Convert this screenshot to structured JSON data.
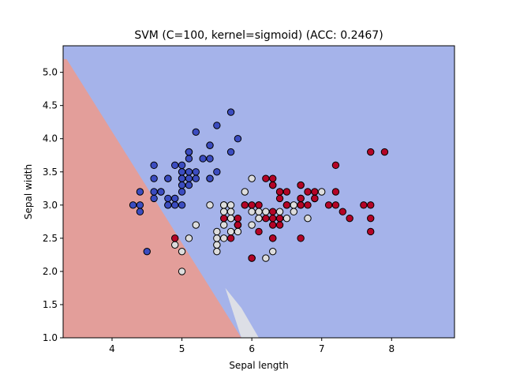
{
  "chart_data": {
    "type": "scatter",
    "title": "SVM (C=100, kernel=sigmoid) (ACC: 0.2467)",
    "xlabel": "Sepal length",
    "ylabel": "Sepal width",
    "xlim": [
      3.3,
      8.9
    ],
    "ylim": [
      1.0,
      5.4
    ],
    "xticks": [
      "4",
      "5",
      "6",
      "7",
      "8"
    ],
    "yticks": [
      "1.0",
      "1.5",
      "2.0",
      "2.5",
      "3.0",
      "3.5",
      "4.0",
      "4.5",
      "5.0"
    ],
    "grid": false,
    "legend": "none",
    "decision_regions": [
      {
        "class": "0",
        "color": "#a5b3ea",
        "boundary": "upper-right of line"
      },
      {
        "class": "1",
        "color": "#dddfe6",
        "boundary": "thin wedge between regions near x 5.6-5.9, y 1.0-1.7"
      },
      {
        "class": "2",
        "color": "#e39e9a",
        "boundary": "lower-left of line from (3.3, 5.2) to (5.85, 1.0)"
      }
    ],
    "series": [
      {
        "class": "0",
        "color": "#3b4cc0",
        "points": [
          [
            5.1,
            3.5
          ],
          [
            4.9,
            3.0
          ],
          [
            4.7,
            3.2
          ],
          [
            4.6,
            3.1
          ],
          [
            5.0,
            3.6
          ],
          [
            5.4,
            3.9
          ],
          [
            4.6,
            3.4
          ],
          [
            5.0,
            3.4
          ],
          [
            4.4,
            2.9
          ],
          [
            4.9,
            3.1
          ],
          [
            5.4,
            3.7
          ],
          [
            4.8,
            3.4
          ],
          [
            4.8,
            3.0
          ],
          [
            4.3,
            3.0
          ],
          [
            5.8,
            4.0
          ],
          [
            5.7,
            4.4
          ],
          [
            5.4,
            3.9
          ],
          [
            5.1,
            3.5
          ],
          [
            5.7,
            3.8
          ],
          [
            5.1,
            3.8
          ],
          [
            5.4,
            3.4
          ],
          [
            5.1,
            3.7
          ],
          [
            4.6,
            3.6
          ],
          [
            5.1,
            3.3
          ],
          [
            4.8,
            3.4
          ],
          [
            5.0,
            3.0
          ],
          [
            5.0,
            3.4
          ],
          [
            5.2,
            3.5
          ],
          [
            5.2,
            3.4
          ],
          [
            4.7,
            3.2
          ],
          [
            4.8,
            3.1
          ],
          [
            5.4,
            3.4
          ],
          [
            5.2,
            4.1
          ],
          [
            5.5,
            4.2
          ],
          [
            4.9,
            3.1
          ],
          [
            5.0,
            3.2
          ],
          [
            5.5,
            3.5
          ],
          [
            4.9,
            3.6
          ],
          [
            4.4,
            3.0
          ],
          [
            5.1,
            3.4
          ],
          [
            5.0,
            3.5
          ],
          [
            4.5,
            2.3
          ],
          [
            4.4,
            3.2
          ],
          [
            5.0,
            3.5
          ],
          [
            5.1,
            3.8
          ],
          [
            4.8,
            3.0
          ],
          [
            5.1,
            3.8
          ],
          [
            4.6,
            3.2
          ],
          [
            5.3,
            3.7
          ],
          [
            5.0,
            3.3
          ]
        ]
      },
      {
        "class": "1",
        "color": "#dddddd",
        "points": [
          [
            7.0,
            3.2
          ],
          [
            6.4,
            3.2
          ],
          [
            6.9,
            3.1
          ],
          [
            5.5,
            2.3
          ],
          [
            6.5,
            2.8
          ],
          [
            5.7,
            2.8
          ],
          [
            6.3,
            3.3
          ],
          [
            4.9,
            2.4
          ],
          [
            6.6,
            2.9
          ],
          [
            5.2,
            2.7
          ],
          [
            5.0,
            2.0
          ],
          [
            5.9,
            3.0
          ],
          [
            6.0,
            2.2
          ],
          [
            6.1,
            2.9
          ],
          [
            5.6,
            2.9
          ],
          [
            6.7,
            3.1
          ],
          [
            5.6,
            3.0
          ],
          [
            5.8,
            2.7
          ],
          [
            6.2,
            2.2
          ],
          [
            5.6,
            2.5
          ],
          [
            5.9,
            3.2
          ],
          [
            6.1,
            2.8
          ],
          [
            6.3,
            2.5
          ],
          [
            6.1,
            2.8
          ],
          [
            6.4,
            2.9
          ],
          [
            6.6,
            3.0
          ],
          [
            6.8,
            2.8
          ],
          [
            6.7,
            3.0
          ],
          [
            6.0,
            2.9
          ],
          [
            5.7,
            2.6
          ],
          [
            5.5,
            2.4
          ],
          [
            5.5,
            2.4
          ],
          [
            5.8,
            2.7
          ],
          [
            6.0,
            2.7
          ],
          [
            5.4,
            3.0
          ],
          [
            6.0,
            3.4
          ],
          [
            6.7,
            3.1
          ],
          [
            6.3,
            2.3
          ],
          [
            5.6,
            3.0
          ],
          [
            5.5,
            2.5
          ],
          [
            5.5,
            2.6
          ],
          [
            6.1,
            3.0
          ],
          [
            5.8,
            2.6
          ],
          [
            5.0,
            2.3
          ],
          [
            5.6,
            2.7
          ],
          [
            5.7,
            3.0
          ],
          [
            5.7,
            2.9
          ],
          [
            6.2,
            2.9
          ],
          [
            5.1,
            2.5
          ],
          [
            5.7,
            2.8
          ]
        ]
      },
      {
        "class": "2",
        "color": "#b40426",
        "points": [
          [
            6.3,
            3.3
          ],
          [
            5.8,
            2.7
          ],
          [
            7.1,
            3.0
          ],
          [
            6.3,
            2.9
          ],
          [
            6.5,
            3.0
          ],
          [
            7.6,
            3.0
          ],
          [
            4.9,
            2.5
          ],
          [
            7.3,
            2.9
          ],
          [
            6.7,
            2.5
          ],
          [
            7.2,
            3.6
          ],
          [
            6.5,
            3.2
          ],
          [
            6.4,
            2.7
          ],
          [
            6.8,
            3.0
          ],
          [
            5.7,
            2.5
          ],
          [
            5.8,
            2.8
          ],
          [
            6.4,
            3.2
          ],
          [
            6.5,
            3.0
          ],
          [
            7.7,
            3.8
          ],
          [
            7.7,
            2.6
          ],
          [
            6.0,
            2.2
          ],
          [
            6.9,
            3.2
          ],
          [
            5.6,
            2.8
          ],
          [
            7.7,
            2.8
          ],
          [
            6.3,
            2.7
          ],
          [
            6.7,
            3.3
          ],
          [
            7.2,
            3.2
          ],
          [
            6.2,
            2.8
          ],
          [
            6.1,
            3.0
          ],
          [
            6.4,
            2.8
          ],
          [
            7.2,
            3.0
          ],
          [
            7.4,
            2.8
          ],
          [
            7.9,
            3.8
          ],
          [
            6.4,
            2.8
          ],
          [
            6.3,
            2.8
          ],
          [
            6.1,
            2.6
          ],
          [
            7.7,
            3.0
          ],
          [
            6.3,
            3.4
          ],
          [
            6.4,
            3.1
          ],
          [
            6.0,
            3.0
          ],
          [
            6.9,
            3.1
          ],
          [
            6.7,
            3.1
          ],
          [
            6.9,
            3.1
          ],
          [
            5.8,
            2.7
          ],
          [
            6.8,
            3.2
          ],
          [
            6.7,
            3.3
          ],
          [
            6.7,
            3.0
          ],
          [
            6.3,
            2.5
          ],
          [
            6.5,
            3.0
          ],
          [
            6.2,
            3.4
          ],
          [
            5.9,
            3.0
          ]
        ]
      }
    ]
  }
}
